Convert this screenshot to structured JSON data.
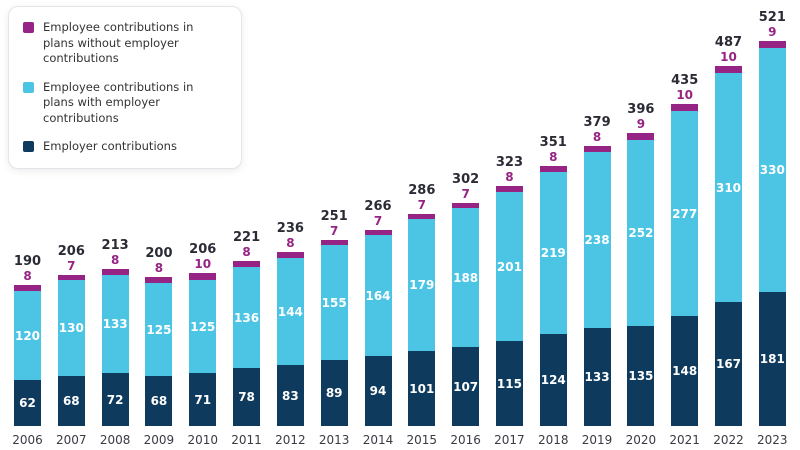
{
  "legend": {
    "items": [
      {
        "label": "Employee contributions in plans without employer contributions",
        "color": "#962484"
      },
      {
        "label": "Employee contributions in plans with employer contributions",
        "color": "#4cc4e4"
      },
      {
        "label": "Employer contributions",
        "color": "#0e3a5e"
      }
    ]
  },
  "chart_data": {
    "type": "bar",
    "stacked": true,
    "title": "",
    "xlabel": "",
    "ylabel": "",
    "categories": [
      "2006",
      "2007",
      "2008",
      "2009",
      "2010",
      "2011",
      "2012",
      "2013",
      "2014",
      "2015",
      "2016",
      "2017",
      "2018",
      "2019",
      "2020",
      "2021",
      "2022",
      "2023"
    ],
    "series": [
      {
        "name": "Employer contributions",
        "key": "employer",
        "color": "#0e3a5e",
        "values": [
          62,
          68,
          72,
          68,
          71,
          78,
          83,
          89,
          94,
          101,
          107,
          115,
          124,
          133,
          135,
          148,
          167,
          181
        ]
      },
      {
        "name": "Employee contributions in plans with employer contributions",
        "key": "with-employer",
        "color": "#4cc4e4",
        "values": [
          120,
          130,
          133,
          125,
          125,
          136,
          144,
          155,
          164,
          179,
          188,
          201,
          219,
          238,
          252,
          277,
          310,
          330
        ]
      },
      {
        "name": "Employee contributions in plans without employer contributions",
        "key": "without-employer",
        "color": "#962484",
        "values": [
          8,
          7,
          8,
          8,
          10,
          8,
          8,
          7,
          7,
          7,
          7,
          8,
          8,
          8,
          9,
          10,
          10,
          9
        ]
      }
    ],
    "totals": [
      190,
      206,
      213,
      200,
      206,
      221,
      236,
      251,
      266,
      286,
      302,
      323,
      351,
      379,
      396,
      435,
      487,
      521
    ],
    "ylim": [
      0,
      540
    ],
    "grid": false,
    "legend_position": "top-left",
    "value_labels": "white inside navy and light-blue segments; purple segment value shown above bar in purple; total shown above bar in dark"
  }
}
